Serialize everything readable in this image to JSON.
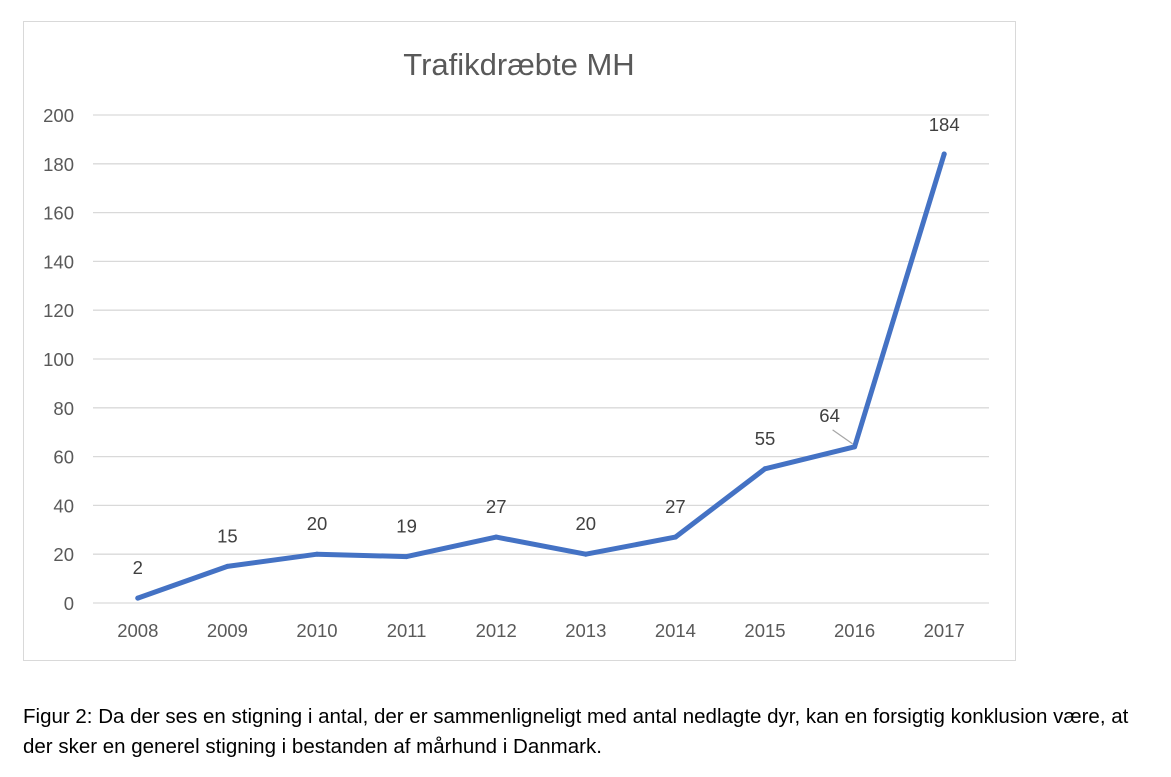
{
  "chart_data": {
    "type": "line",
    "title": "Trafikdræbte MH",
    "xlabel": "",
    "ylabel": "",
    "categories": [
      "2008",
      "2009",
      "2010",
      "2011",
      "2012",
      "2013",
      "2014",
      "2015",
      "2016",
      "2017"
    ],
    "series": [
      {
        "values": [
          2,
          15,
          20,
          19,
          27,
          20,
          27,
          55,
          64,
          184
        ],
        "color": "#4472c4"
      }
    ],
    "data_labels": [
      "2",
      "15",
      "20",
      "19",
      "27",
      "20",
      "27",
      "55",
      "64",
      "184"
    ],
    "ylim": [
      0,
      200
    ],
    "yticks": [
      "0",
      "20",
      "40",
      "60",
      "80",
      "100",
      "120",
      "140",
      "160",
      "180",
      "200"
    ],
    "grid": true,
    "legend": "none",
    "colors": {
      "gridline": "#d9d9d9",
      "axis_text": "#595959",
      "line": "#4472c4"
    }
  },
  "caption": "Figur 2: Da der ses en stigning i antal, der er sammenligneligt med antal nedlagte dyr, kan en forsigtig konklusion være, at der sker en generel stigning i bestanden af mårhund i Danmark."
}
